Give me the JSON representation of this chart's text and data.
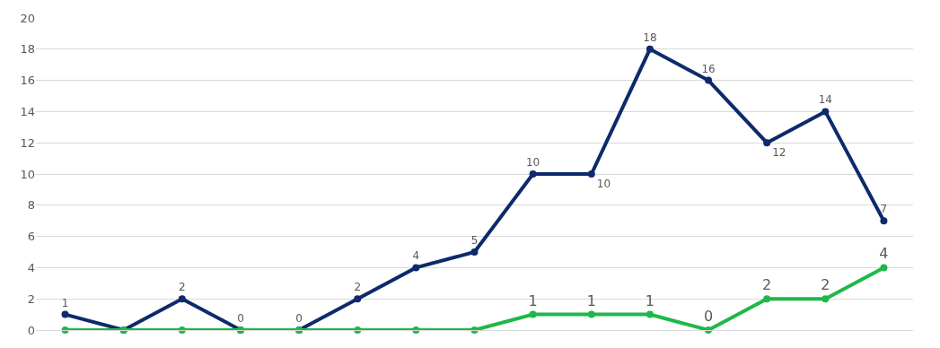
{
  "chart_data": {
    "type": "line",
    "categories": [
      null,
      null,
      null,
      null,
      null,
      null,
      null,
      null,
      null,
      null,
      null,
      null,
      null,
      null,
      null
    ],
    "series": [
      {
        "color": "#0d2a6b",
        "values": [
          1,
          0,
          2,
          0,
          0,
          2,
          4,
          5,
          10,
          10,
          18,
          16,
          12,
          14,
          7
        ],
        "value_labels": [
          "1",
          null,
          "2",
          "0",
          "0",
          "2",
          "4",
          "5",
          "10",
          "10",
          "18",
          "16",
          "12",
          "14",
          "7"
        ]
      },
      {
        "color": "#1fb84a",
        "values": [
          0,
          0,
          0,
          0,
          0,
          0,
          0,
          0,
          1,
          1,
          1,
          0,
          2,
          2,
          4
        ],
        "value_labels": [
          null,
          null,
          null,
          null,
          null,
          null,
          null,
          null,
          "1",
          "1",
          "1",
          "0",
          "2",
          "2",
          "4"
        ]
      }
    ],
    "ylim": [
      0,
      20
    ],
    "yticks": [
      0,
      2,
      4,
      6,
      8,
      10,
      12,
      14,
      16,
      18,
      20
    ],
    "grid": "y",
    "legend": false,
    "marker": "circle",
    "line_style": "solid"
  }
}
